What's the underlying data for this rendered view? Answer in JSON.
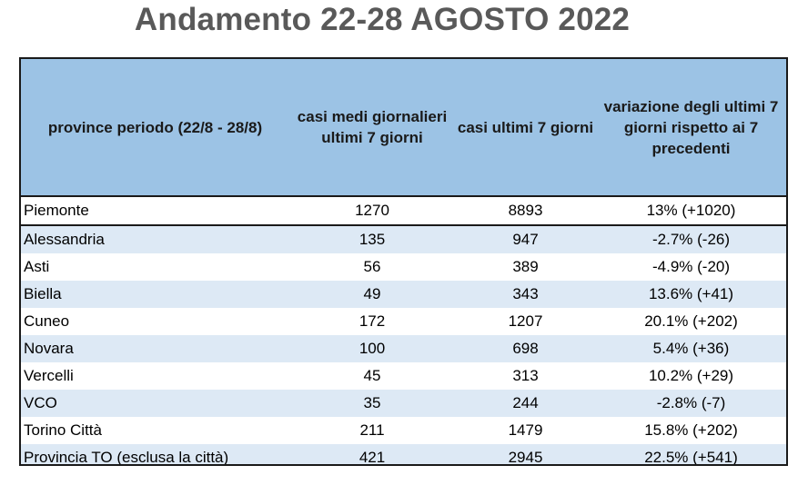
{
  "title": "Andamento 22-28 AGOSTO 2022",
  "table": {
    "headers": [
      "province periodo (22/8 - 28/8)",
      "casi medi giornalieri ultimi 7 giorni",
      "casi ultimi 7 giorni",
      "variazione degli ultimi 7 giorni rispetto ai 7 precedenti"
    ],
    "rows": [
      [
        "Piemonte",
        "1270",
        "8893",
        "13% (+1020)"
      ],
      [
        "Alessandria",
        "135",
        "947",
        "-2.7% (-26)"
      ],
      [
        "Asti",
        "56",
        "389",
        "-4.9% (-20)"
      ],
      [
        "Biella",
        "49",
        "343",
        "13.6% (+41)"
      ],
      [
        "Cuneo",
        "172",
        "1207",
        "20.1% (+202)"
      ],
      [
        "Novara",
        "100",
        "698",
        "5.4% (+36)"
      ],
      [
        "Vercelli",
        "45",
        "313",
        "10.2% (+29)"
      ],
      [
        "VCO",
        "35",
        "244",
        "-2.8% (-7)"
      ],
      [
        "Torino Città",
        "211",
        "1479",
        "15.8% (+202)"
      ],
      [
        "Provincia TO (esclusa la città)",
        "421",
        "2945",
        "22.5% (+541)"
      ]
    ]
  },
  "colors": {
    "header_bg": "#9cc3e5",
    "stripe_bg": "#dde9f5",
    "title_text": "#595959"
  }
}
